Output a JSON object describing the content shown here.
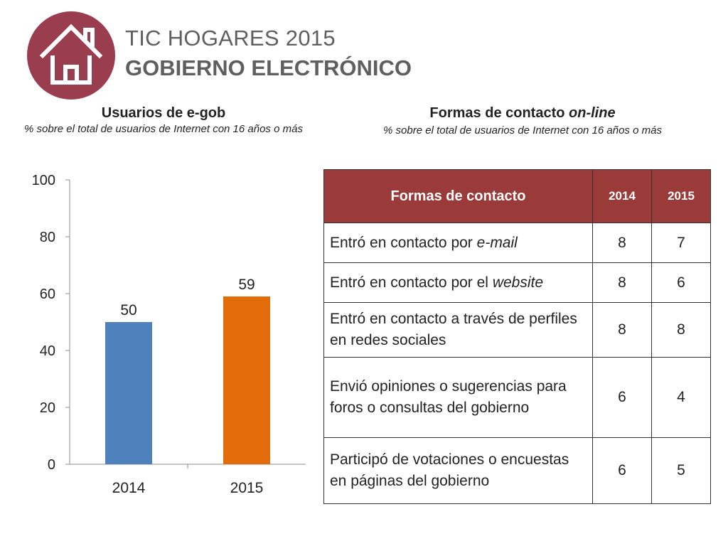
{
  "header": {
    "title_line1": "TIC HOGARES 2015",
    "title_line2": "GOBIERNO ELECTRÓNICO",
    "logo_icon": "house-icon",
    "logo_color": "#9a3d4e"
  },
  "left_panel": {
    "heading": "Usuarios de e-gob",
    "subheading": "% sobre el total de usuarios de Internet con 16 años o más"
  },
  "right_panel": {
    "heading_prefix": "Formas de contacto ",
    "heading_italic": "on-line",
    "subheading": "% sobre el total de usuarios de Internet con 16 años o más"
  },
  "chart_data": {
    "type": "bar",
    "categories": [
      "2014",
      "2015"
    ],
    "values": [
      50,
      59
    ],
    "data_labels": [
      "50",
      "59"
    ],
    "colors": [
      "#4f81bd",
      "#e36c0a"
    ],
    "ylim": [
      0,
      100
    ],
    "yticks": [
      0,
      20,
      40,
      60,
      80,
      100
    ],
    "title": "",
    "xlabel": "",
    "ylabel": "",
    "grid": false,
    "legend": "none"
  },
  "table": {
    "header_color": "#9a3a39",
    "columns": [
      "Formas de contacto",
      "2014",
      "2015"
    ],
    "rows": [
      {
        "label_pre": "Entró en contacto por ",
        "label_em": "e-mail",
        "v2014": "8",
        "v2015": "7"
      },
      {
        "label_pre": "Entró en contacto por el ",
        "label_em": "website",
        "v2014": "8",
        "v2015": "6"
      },
      {
        "label_pre": "Entró en contacto a través de perfiles en redes sociales",
        "label_em": "",
        "v2014": "8",
        "v2015": "8"
      },
      {
        "label_pre": "Envió opiniones o sugerencias para foros o consultas del gobierno",
        "label_em": "",
        "v2014": "6",
        "v2015": "4"
      },
      {
        "label_pre": "Participó de votaciones o encuestas en páginas del gobierno",
        "label_em": "",
        "v2014": "6",
        "v2015": "5"
      }
    ]
  }
}
